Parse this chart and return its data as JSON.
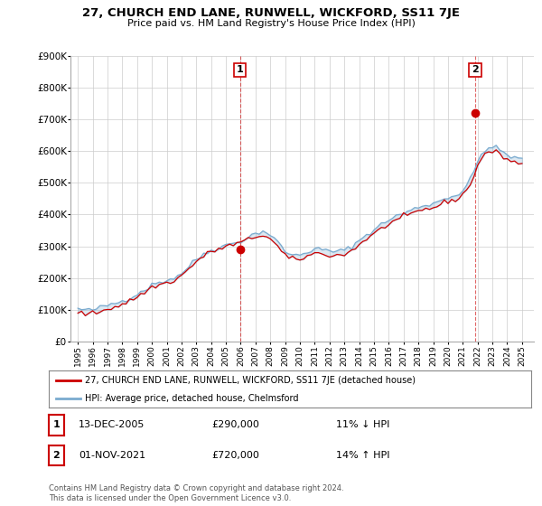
{
  "title": "27, CHURCH END LANE, RUNWELL, WICKFORD, SS11 7JE",
  "subtitle": "Price paid vs. HM Land Registry's House Price Index (HPI)",
  "legend_line1": "27, CHURCH END LANE, RUNWELL, WICKFORD, SS11 7JE (detached house)",
  "legend_line2": "HPI: Average price, detached house, Chelmsford",
  "sale1_date": "13-DEC-2005",
  "sale1_price": "£290,000",
  "sale1_hpi": "11% ↓ HPI",
  "sale2_date": "01-NOV-2021",
  "sale2_price": "£720,000",
  "sale2_hpi": "14% ↑ HPI",
  "footer": "Contains HM Land Registry data © Crown copyright and database right 2024.\nThis data is licensed under the Open Government Licence v3.0.",
  "red_color": "#cc0000",
  "blue_color": "#7aabcf",
  "fill_color": "#ddeeff",
  "background_color": "#ffffff",
  "grid_color": "#cccccc",
  "sale1_year": 2005.95,
  "sale1_value": 290000,
  "sale2_year": 2021.83,
  "sale2_value": 720000,
  "ylim_max": 900000,
  "ylim_min": 0,
  "hpi_x": [
    1995.0,
    1995.25,
    1995.5,
    1995.75,
    1996.0,
    1996.25,
    1996.5,
    1996.75,
    1997.0,
    1997.25,
    1997.5,
    1997.75,
    1998.0,
    1998.25,
    1998.5,
    1998.75,
    1999.0,
    1999.25,
    1999.5,
    1999.75,
    2000.0,
    2000.25,
    2000.5,
    2000.75,
    2001.0,
    2001.25,
    2001.5,
    2001.75,
    2002.0,
    2002.25,
    2002.5,
    2002.75,
    2003.0,
    2003.25,
    2003.5,
    2003.75,
    2004.0,
    2004.25,
    2004.5,
    2004.75,
    2005.0,
    2005.25,
    2005.5,
    2005.75,
    2006.0,
    2006.25,
    2006.5,
    2006.75,
    2007.0,
    2007.25,
    2007.5,
    2007.75,
    2008.0,
    2008.25,
    2008.5,
    2008.75,
    2009.0,
    2009.25,
    2009.5,
    2009.75,
    2010.0,
    2010.25,
    2010.5,
    2010.75,
    2011.0,
    2011.25,
    2011.5,
    2011.75,
    2012.0,
    2012.25,
    2012.5,
    2012.75,
    2013.0,
    2013.25,
    2013.5,
    2013.75,
    2014.0,
    2014.25,
    2014.5,
    2014.75,
    2015.0,
    2015.25,
    2015.5,
    2015.75,
    2016.0,
    2016.25,
    2016.5,
    2016.75,
    2017.0,
    2017.25,
    2017.5,
    2017.75,
    2018.0,
    2018.25,
    2018.5,
    2018.75,
    2019.0,
    2019.25,
    2019.5,
    2019.75,
    2020.0,
    2020.25,
    2020.5,
    2020.75,
    2021.0,
    2021.25,
    2021.5,
    2021.75,
    2022.0,
    2022.25,
    2022.5,
    2022.75,
    2023.0,
    2023.25,
    2023.5,
    2023.75,
    2024.0,
    2024.25,
    2024.5,
    2024.75,
    2025.0
  ],
  "hpi_y": [
    103000,
    101000,
    99000,
    98000,
    100000,
    103000,
    107000,
    110000,
    114000,
    118000,
    121000,
    124000,
    128000,
    133000,
    138000,
    143000,
    150000,
    157000,
    163000,
    170000,
    178000,
    183000,
    187000,
    190000,
    193000,
    197000,
    201000,
    207000,
    215000,
    225000,
    237000,
    248000,
    258000,
    267000,
    275000,
    282000,
    287000,
    292000,
    296000,
    300000,
    303000,
    307000,
    310000,
    313000,
    317000,
    322000,
    328000,
    334000,
    340000,
    345000,
    347000,
    343000,
    336000,
    325000,
    312000,
    298000,
    285000,
    277000,
    272000,
    271000,
    274000,
    278000,
    283000,
    287000,
    290000,
    291000,
    289000,
    287000,
    285000,
    284000,
    284000,
    285000,
    288000,
    293000,
    300000,
    308000,
    318000,
    328000,
    337000,
    344000,
    352000,
    360000,
    368000,
    376000,
    384000,
    390000,
    395000,
    399000,
    403000,
    408000,
    413000,
    418000,
    423000,
    427000,
    430000,
    432000,
    435000,
    439000,
    444000,
    450000,
    455000,
    458000,
    460000,
    465000,
    475000,
    490000,
    510000,
    535000,
    565000,
    590000,
    605000,
    610000,
    610000,
    608000,
    603000,
    596000,
    588000,
    582000,
    578000,
    575000,
    574000
  ],
  "prop_y": [
    93000,
    90000,
    87000,
    87000,
    88000,
    91000,
    95000,
    99000,
    103000,
    107000,
    110000,
    113000,
    117000,
    122000,
    128000,
    134000,
    140000,
    148000,
    155000,
    163000,
    170000,
    175000,
    179000,
    182000,
    184000,
    188000,
    193000,
    199000,
    208000,
    218000,
    229000,
    241000,
    251000,
    261000,
    269000,
    276000,
    282000,
    287000,
    291000,
    295000,
    298000,
    302000,
    305000,
    308000,
    312000,
    316000,
    320000,
    325000,
    330000,
    334000,
    335000,
    330000,
    322000,
    311000,
    298000,
    284000,
    271000,
    263000,
    258000,
    257000,
    260000,
    264000,
    269000,
    274000,
    277000,
    278000,
    276000,
    274000,
    272000,
    271000,
    271000,
    272000,
    275000,
    280000,
    287000,
    295000,
    305000,
    315000,
    324000,
    331000,
    339000,
    347000,
    355000,
    363000,
    371000,
    377000,
    382000,
    386000,
    390000,
    395000,
    400000,
    405000,
    410000,
    414000,
    417000,
    419000,
    422000,
    426000,
    431000,
    437000,
    442000,
    445000,
    447000,
    452000,
    462000,
    477000,
    497000,
    522000,
    552000,
    577000,
    592000,
    597000,
    597000,
    595000,
    590000,
    583000,
    575000,
    569000,
    565000,
    562000,
    561000
  ]
}
